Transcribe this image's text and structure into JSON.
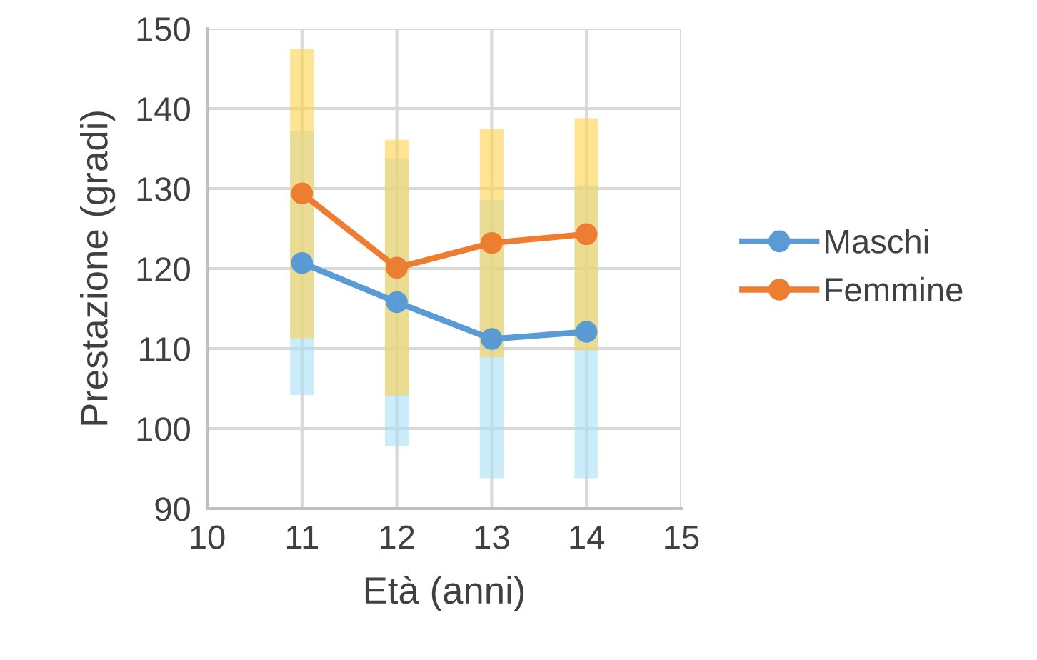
{
  "chart_data": {
    "type": "line",
    "xlabel": "Età (anni)",
    "ylabel": "Prestazione (gradi)",
    "x": [
      11,
      12,
      13,
      14
    ],
    "series": [
      {
        "name": "Maschi",
        "color": "#5b9bd5",
        "values": [
          120.7,
          115.8,
          111.2,
          112.1
        ],
        "errors": [
          16.5,
          18,
          17.4,
          18.3
        ]
      },
      {
        "name": "Femmine",
        "color": "#ed7d31",
        "values": [
          129.4,
          120.1,
          123.2,
          124.3
        ],
        "errors": [
          18.1,
          16,
          14.3,
          14.5
        ]
      }
    ],
    "xlim": [
      10,
      15
    ],
    "xticks": [
      10,
      11,
      12,
      13,
      14,
      15
    ],
    "ylim": [
      90,
      150
    ],
    "yticks": [
      90,
      100,
      110,
      120,
      130,
      140,
      150
    ],
    "grid": true,
    "legend": "right",
    "marker": "circle",
    "line_style": "solid"
  }
}
